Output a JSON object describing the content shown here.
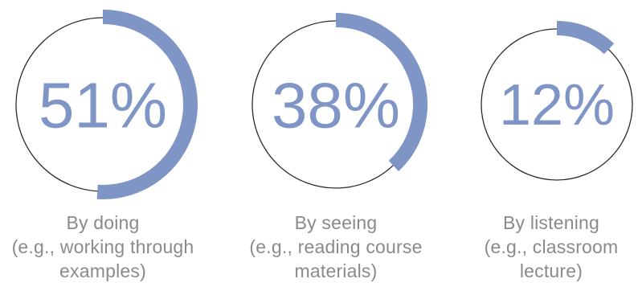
{
  "accent_color": "#7f95c6",
  "ring_color": "#2b2b2b",
  "caption_color": "#8a8a8a",
  "chart_data": {
    "type": "pie",
    "style": "ring-progress",
    "items": [
      {
        "value": 51,
        "label": "51%",
        "caption_lines": [
          "By doing",
          "(e.g., working through",
          "examples)"
        ]
      },
      {
        "value": 38,
        "label": "38%",
        "caption_lines": [
          "By seeing",
          "(e.g., reading course",
          "materials)"
        ]
      },
      {
        "value": 12,
        "label": "12%",
        "caption_lines": [
          "By listening",
          "(e.g., classroom",
          "lecture)"
        ]
      }
    ]
  }
}
